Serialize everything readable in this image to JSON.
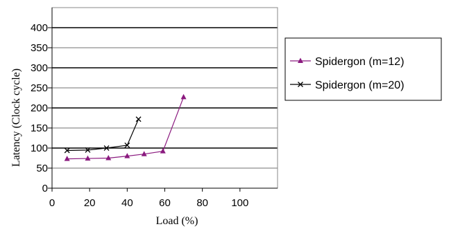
{
  "chart_data": {
    "type": "line",
    "title": "",
    "xlabel": "Load (%)",
    "ylabel": "Latency (Clock cycle)",
    "xlim": [
      0,
      120
    ],
    "ylim": [
      0,
      450
    ],
    "x_ticks": [
      "0",
      "20",
      "40",
      "60",
      "80",
      "100"
    ],
    "y_ticks": [
      "0",
      "50",
      "100",
      "150",
      "200",
      "250",
      "300",
      "350",
      "400"
    ],
    "grid": "horizontal",
    "legend_position": "right",
    "series": [
      {
        "name": "Spidergon (m=12)",
        "marker": "triangle",
        "color": "#8b1a7f",
        "points": [
          [
            8,
            73
          ],
          [
            19,
            74
          ],
          [
            30,
            75
          ],
          [
            40,
            80
          ],
          [
            49,
            85
          ],
          [
            59,
            92
          ],
          [
            70,
            227
          ]
        ]
      },
      {
        "name": "Spidergon (m=20)",
        "marker": "x",
        "color": "#000000",
        "points": [
          [
            8,
            94
          ],
          [
            19,
            95
          ],
          [
            29,
            100
          ],
          [
            40,
            107
          ],
          [
            46,
            172
          ]
        ]
      }
    ]
  }
}
